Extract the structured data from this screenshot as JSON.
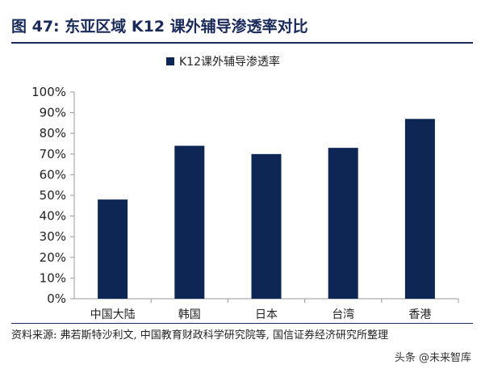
{
  "header": {
    "title": "图 47:  东亚区域 K12 课外辅导渗透率对比"
  },
  "legend": {
    "label": "K12课外辅导渗透率"
  },
  "footer": {
    "source": "资料来源: 弗若斯特沙利文, 中国教育财政科学研究院等, 国信证券经济研究所整理",
    "watermark": "头条 @未来智库"
  },
  "colors": {
    "bar": "#0e2654",
    "axis": "#999999",
    "title": "#1a2a5a"
  },
  "chart_data": {
    "type": "bar",
    "title": "",
    "xlabel": "",
    "ylabel": "",
    "categories": [
      "中国大陆",
      "韩国",
      "日本",
      "台湾",
      "香港"
    ],
    "series": [
      {
        "name": "K12课外辅导渗透率",
        "values": [
          48,
          74,
          70,
          73,
          87
        ]
      }
    ],
    "ylim": [
      0,
      100
    ],
    "yticks": [
      "0%",
      "10%",
      "20%",
      "30%",
      "40%",
      "50%",
      "60%",
      "70%",
      "80%",
      "90%",
      "100%"
    ],
    "grid": false,
    "legend_position": "top-center"
  }
}
